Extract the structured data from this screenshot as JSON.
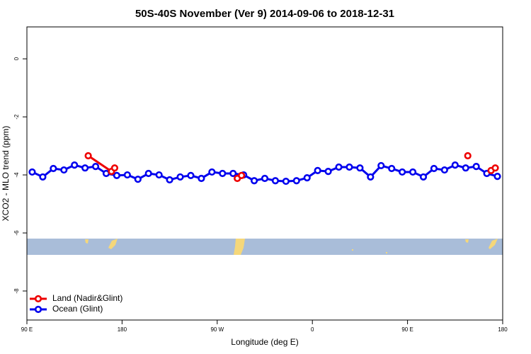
{
  "chart_data": {
    "type": "line",
    "title": "50S-40S November (Ver 9)   2014-09-06 to 2018-12-31",
    "x_label": "Longitude (deg E)",
    "y_label": "XCO2 - MLO trend (ppm)",
    "xlim": [
      90,
      540
    ],
    "xticks": [
      {
        "value": 90,
        "label": "90 E"
      },
      {
        "value": 180,
        "label": "180"
      },
      {
        "value": 270,
        "label": "90 W"
      },
      {
        "value": 360,
        "label": "0"
      },
      {
        "value": 450,
        "label": "90 E"
      },
      {
        "value": 540,
        "label": "180"
      }
    ],
    "ylim": [
      -9,
      1.1
    ],
    "yticks": [
      -8,
      -6,
      -4,
      -2,
      0
    ],
    "legend": "bottom-left",
    "series": [
      {
        "name": "Land (Nadir&Glint)",
        "color": "#ee0000",
        "x": [
          148,
          170,
          173,
          null,
          289,
          293,
          null,
          507,
          null,
          529,
          533
        ],
        "values": [
          -3.34,
          -3.88,
          -3.76,
          null,
          -4.12,
          -4.02,
          null,
          -3.34,
          null,
          -3.85,
          -3.76
        ]
      },
      {
        "name": "Ocean (Glint)",
        "color": "#0000ee",
        "x": [
          95,
          105,
          115,
          125,
          135,
          145,
          155,
          165,
          175,
          185,
          195,
          205,
          215,
          225,
          235,
          245,
          255,
          265,
          275,
          285,
          295,
          305,
          315,
          325,
          335,
          345,
          355,
          365,
          375,
          385,
          395,
          405,
          415,
          425,
          435,
          445,
          455,
          465,
          475,
          485,
          495,
          505,
          515,
          525,
          535
        ],
        "values": [
          -3.9,
          -4.07,
          -3.78,
          -3.83,
          -3.66,
          -3.76,
          -3.71,
          -3.95,
          -4.02,
          -4.0,
          -4.15,
          -3.95,
          -4.0,
          -4.17,
          -4.07,
          -4.02,
          -4.12,
          -3.9,
          -3.95,
          -3.95,
          -4.0,
          -4.2,
          -4.12,
          -4.2,
          -4.22,
          -4.2,
          -4.1,
          -3.85,
          -3.88,
          -3.73,
          -3.73,
          -3.76,
          -4.07,
          -3.68,
          -3.78,
          -3.9,
          -3.9,
          -4.07,
          -3.78,
          -3.83,
          -3.66,
          -3.76,
          -3.71,
          -3.95,
          -4.05
        ]
      }
    ]
  }
}
